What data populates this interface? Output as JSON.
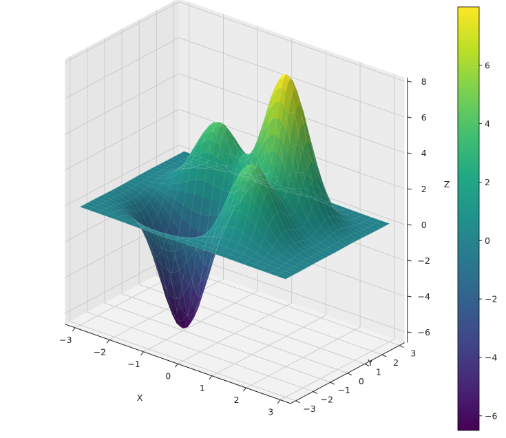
{
  "chart_data": {
    "type": "surface3d",
    "title": "",
    "xlabel": "X",
    "ylabel": "Y",
    "zlabel": "Z",
    "xlim": [
      -3.3,
      3.3
    ],
    "ylim": [
      -3.3,
      3.3
    ],
    "zlim": [
      -6.6,
      8.2
    ],
    "x_ticks": [
      "−3",
      "−2",
      "−1",
      "0",
      "1",
      "2",
      "3"
    ],
    "y_ticks": [
      "−3",
      "−2",
      "−1",
      "0",
      "1",
      "2",
      "3"
    ],
    "z_ticks": [
      "−6",
      "−4",
      "−2",
      "0",
      "2",
      "4",
      "6",
      "8"
    ],
    "colormap": "viridis",
    "colorbar": {
      "min": -6.5,
      "max": 8.0,
      "ticks": [
        "−6",
        "−4",
        "−2",
        "0",
        "2",
        "4",
        "6"
      ]
    },
    "surface": {
      "description_free": true,
      "bumps": [
        {
          "x": 1.0,
          "y": 1.0,
          "amplitude": 8.0
        },
        {
          "x": -1.0,
          "y": 1.0,
          "amplitude": 4.0
        },
        {
          "x": 1.0,
          "y": -1.0,
          "amplitude": 4.0
        },
        {
          "x": -1.0,
          "y": -1.0,
          "amplitude": -6.5
        }
      ],
      "sigma": 0.6
    },
    "grid": true,
    "pane_color": "#f2f2f2"
  }
}
